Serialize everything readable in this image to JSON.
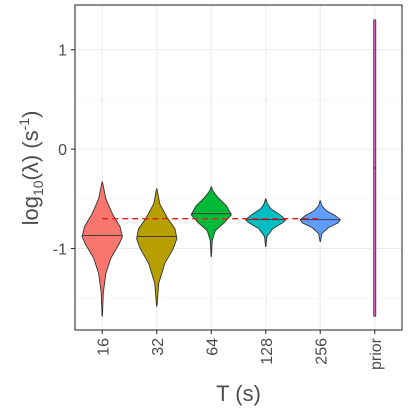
{
  "chart_data": {
    "type": "violin",
    "xlabel": "T (s)",
    "ylabel": {
      "main": "log",
      "sub": "10",
      "mid": "(λ) (s",
      "sup": "-1",
      "end": ")"
    },
    "categories": [
      "16",
      "32",
      "64",
      "128",
      "256",
      "prior"
    ],
    "ylim": [
      -1.82,
      1.45
    ],
    "yticks": [
      -1,
      0,
      1
    ],
    "grid": true,
    "reference_line": {
      "y": -0.7,
      "color": "#e41a1c",
      "style": "dashed",
      "from": "16",
      "to": "256"
    },
    "violins": [
      {
        "category": "16",
        "color": "#f8766d",
        "min": -1.68,
        "max": -0.33,
        "median": -0.87,
        "profile": [
          [
            -1.68,
            0.01
          ],
          [
            -1.45,
            0.05
          ],
          [
            -1.25,
            0.18
          ],
          [
            -1.1,
            0.42
          ],
          [
            -0.95,
            0.85
          ],
          [
            -0.88,
            1.0
          ],
          [
            -0.78,
            0.88
          ],
          [
            -0.65,
            0.5
          ],
          [
            -0.5,
            0.18
          ],
          [
            -0.33,
            0.01
          ]
        ]
      },
      {
        "category": "32",
        "color": "#b79f00",
        "min": -1.58,
        "max": -0.4,
        "median": -0.88,
        "profile": [
          [
            -1.58,
            0.01
          ],
          [
            -1.35,
            0.1
          ],
          [
            -1.15,
            0.4
          ],
          [
            -1.0,
            0.82
          ],
          [
            -0.9,
            1.0
          ],
          [
            -0.8,
            0.9
          ],
          [
            -0.7,
            0.55
          ],
          [
            -0.55,
            0.15
          ],
          [
            -0.4,
            0.01
          ]
        ]
      },
      {
        "category": "64",
        "color": "#00ba38",
        "min": -1.08,
        "max": -0.38,
        "median": -0.65,
        "profile": [
          [
            -1.08,
            0.01
          ],
          [
            -0.92,
            0.05
          ],
          [
            -0.82,
            0.2
          ],
          [
            -0.74,
            0.65
          ],
          [
            -0.66,
            1.0
          ],
          [
            -0.57,
            0.75
          ],
          [
            -0.48,
            0.3
          ],
          [
            -0.42,
            0.08
          ],
          [
            -0.38,
            0.01
          ]
        ]
      },
      {
        "category": "128",
        "color": "#00bfc4",
        "min": -0.98,
        "max": -0.5,
        "median": -0.71,
        "profile": [
          [
            -0.98,
            0.01
          ],
          [
            -0.88,
            0.06
          ],
          [
            -0.8,
            0.35
          ],
          [
            -0.74,
            0.85
          ],
          [
            -0.71,
            1.0
          ],
          [
            -0.66,
            0.7
          ],
          [
            -0.6,
            0.25
          ],
          [
            -0.55,
            0.08
          ],
          [
            -0.5,
            0.01
          ]
        ]
      },
      {
        "category": "256",
        "color": "#619cff",
        "min": -0.93,
        "max": -0.52,
        "median": -0.71,
        "profile": [
          [
            -0.93,
            0.01
          ],
          [
            -0.85,
            0.08
          ],
          [
            -0.79,
            0.4
          ],
          [
            -0.74,
            0.9
          ],
          [
            -0.71,
            1.0
          ],
          [
            -0.67,
            0.75
          ],
          [
            -0.62,
            0.3
          ],
          [
            -0.57,
            0.08
          ],
          [
            -0.52,
            0.01
          ]
        ]
      },
      {
        "category": "prior",
        "color": "#f564e3",
        "min": -1.68,
        "max": 1.3,
        "median": -0.19,
        "profile": [
          [
            -1.68,
            1.0
          ],
          [
            1.3,
            1.0
          ]
        ]
      }
    ]
  }
}
